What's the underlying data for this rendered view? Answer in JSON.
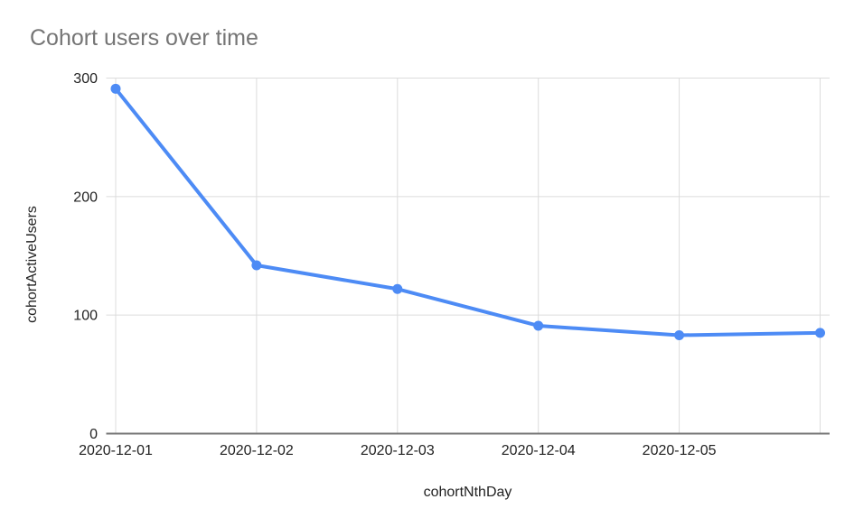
{
  "header": {
    "title": "Cohort users over time"
  },
  "colors": {
    "background": "#ffffff",
    "line": "#4d8bf5",
    "title_text": "#757575",
    "axis_text": "#222222",
    "gridline": "#dcdcdc",
    "axis_line": "#757575"
  },
  "chart_data": {
    "type": "line",
    "title": "Cohort users over time",
    "xlabel": "cohortNthDay",
    "ylabel": "cohortActiveUsers",
    "categories": [
      "2020-12-01",
      "2020-12-02",
      "2020-12-03",
      "2020-12-04",
      "2020-12-05",
      ""
    ],
    "series": [
      {
        "name": "cohortActiveUsers",
        "values": [
          291,
          142,
          122,
          91,
          83,
          85
        ]
      }
    ],
    "ylim": [
      0,
      300
    ],
    "yticks": [
      0,
      100,
      200,
      300
    ],
    "grid": true,
    "legend_position": "none",
    "marker": "circle"
  }
}
